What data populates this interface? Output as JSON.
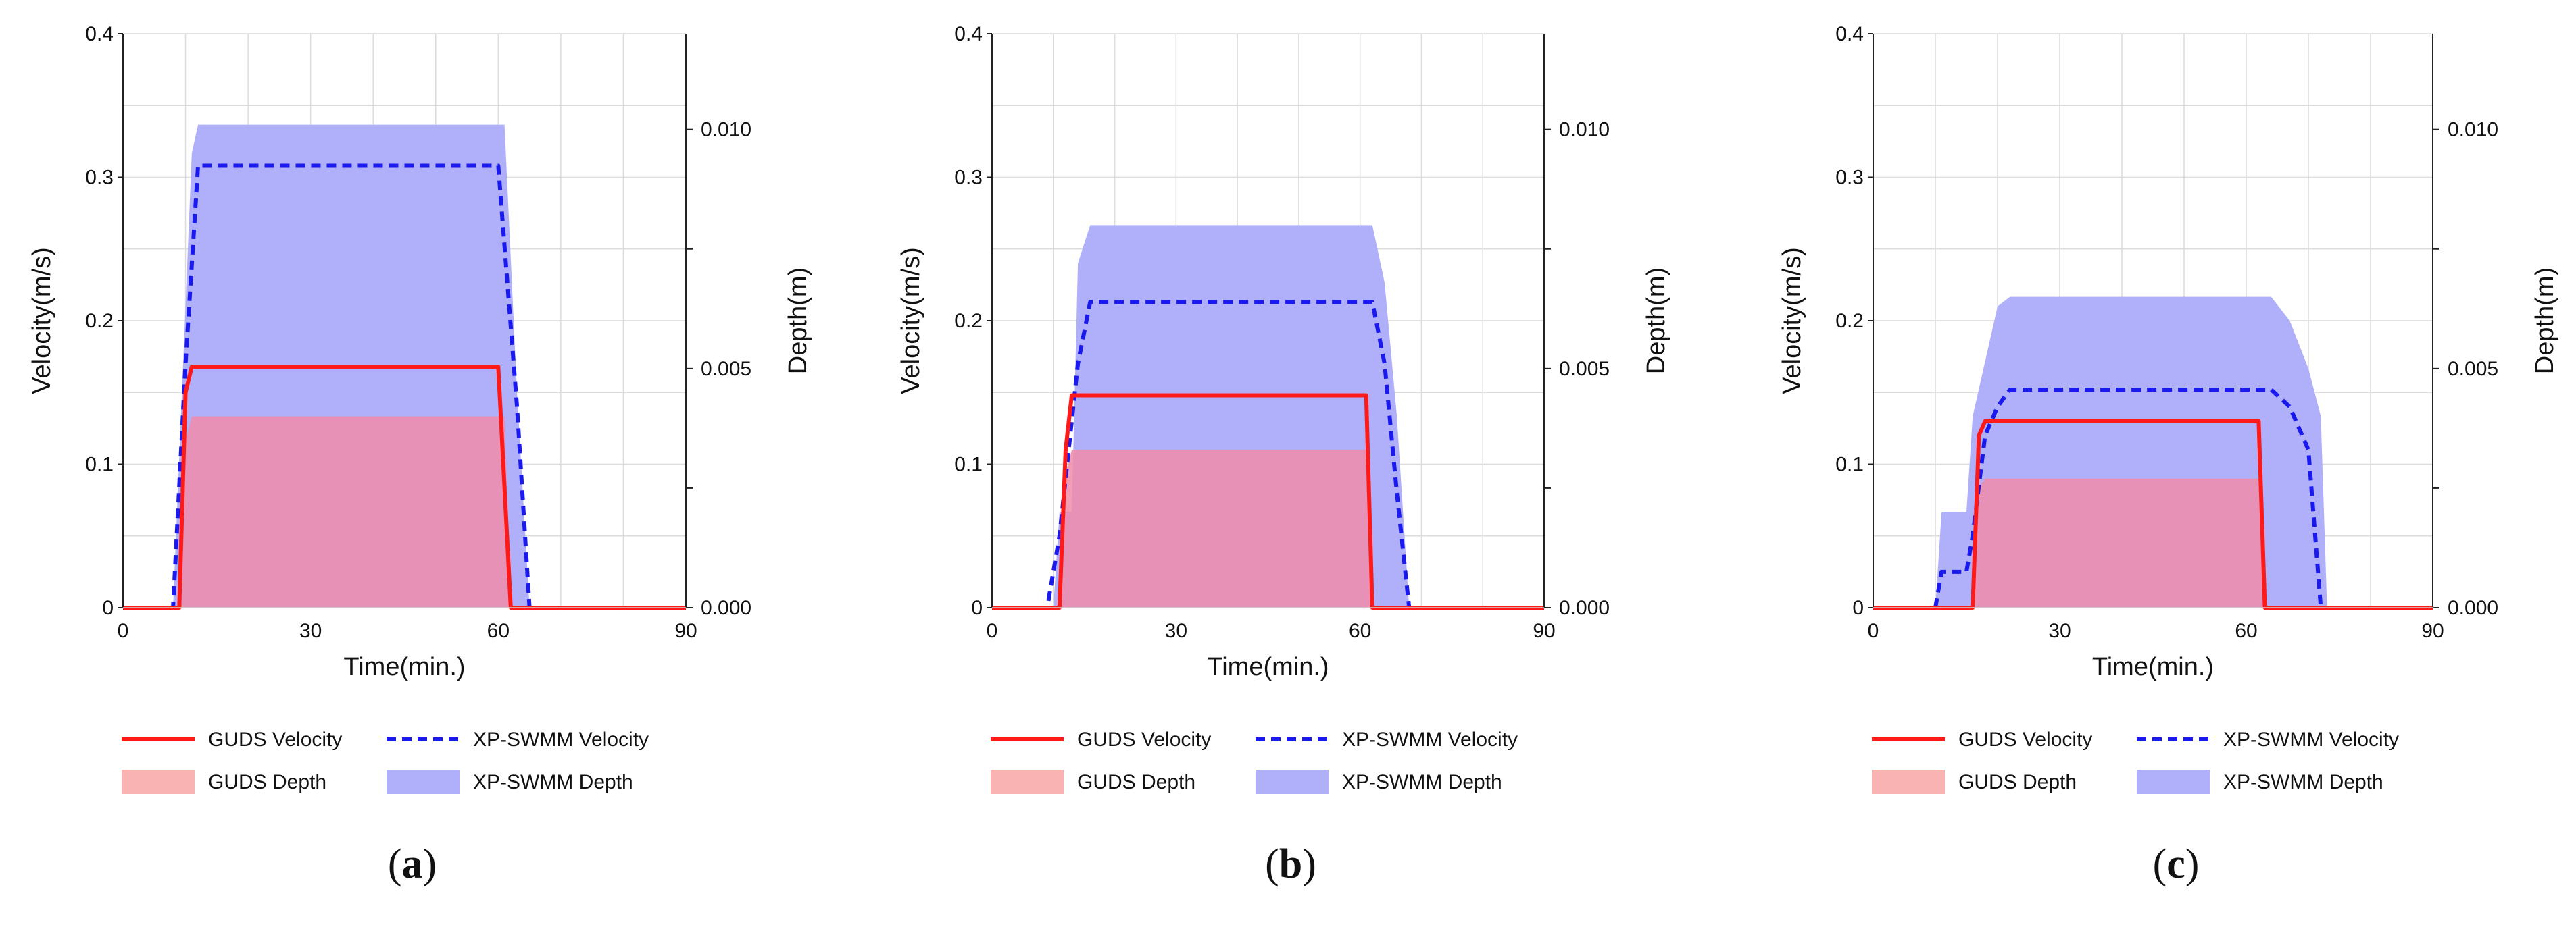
{
  "legend": {
    "guds_velocity": "GUDS Velocity",
    "xp_velocity": "XP-SWMM Velocity",
    "guds_depth": "GUDS Depth",
    "xp_depth": "XP-SWMM Depth"
  },
  "colors": {
    "guds_velocity": "#ff1a1a",
    "xp_velocity": "#1a1aee",
    "guds_depth": "#f08ca8",
    "xp_depth": "#b0b0fa"
  },
  "chart_data": [
    {
      "type": "line",
      "panel": "a",
      "xlabel": "Time(min.)",
      "ylabel": "Velocity(m/s)",
      "y2label": "Depth(m)",
      "xlim": [
        0,
        90
      ],
      "ylim": [
        0,
        0.4
      ],
      "y2lim": [
        0,
        0.012
      ],
      "xticks": [
        "0",
        "30",
        "60",
        "90"
      ],
      "yticks": [
        "0",
        "0.1",
        "0.2",
        "0.3",
        "0.4"
      ],
      "y2ticks": [
        "0.000",
        "0.005",
        "0.010"
      ],
      "grid": true,
      "legend_position": "bottom",
      "series": [
        {
          "name": "GUDS Velocity",
          "axis": "left",
          "style": "solid-line",
          "x": [
            0,
            9,
            10,
            11,
            60,
            62,
            90
          ],
          "y": [
            0,
            0,
            0.15,
            0.168,
            0.168,
            0,
            0
          ]
        },
        {
          "name": "XP-SWMM Velocity",
          "axis": "left",
          "style": "dashed-line",
          "x": [
            0,
            8,
            10,
            12,
            60,
            63,
            65,
            90
          ],
          "y": [
            0,
            0,
            0.17,
            0.308,
            0.308,
            0.14,
            0,
            0
          ]
        },
        {
          "name": "GUDS Depth",
          "axis": "right",
          "style": "area",
          "x": [
            0,
            9,
            10,
            11,
            61,
            62,
            90
          ],
          "y": [
            0,
            0,
            0.0035,
            0.004,
            0.004,
            0,
            0
          ]
        },
        {
          "name": "XP-SWMM Depth",
          "axis": "right",
          "style": "area",
          "x": [
            0,
            8,
            11,
            12,
            61,
            63,
            65,
            90
          ],
          "y": [
            0,
            0,
            0.0095,
            0.0101,
            0.0101,
            0.0045,
            0,
            0
          ]
        }
      ]
    },
    {
      "type": "line",
      "panel": "b",
      "xlabel": "Time(min.)",
      "ylabel": "Velocity(m/s)",
      "y2label": "Depth(m)",
      "xlim": [
        0,
        90
      ],
      "ylim": [
        0,
        0.4
      ],
      "y2lim": [
        0,
        0.012
      ],
      "xticks": [
        "0",
        "30",
        "60",
        "90"
      ],
      "yticks": [
        "0",
        "0.1",
        "0.2",
        "0.3",
        "0.4"
      ],
      "y2ticks": [
        "0.000",
        "0.005",
        "0.010"
      ],
      "grid": true,
      "legend_position": "bottom",
      "series": [
        {
          "name": "GUDS Velocity",
          "axis": "left",
          "style": "solid-line",
          "x": [
            0,
            11,
            12,
            13,
            61,
            62,
            90
          ],
          "y": [
            0,
            0,
            0.11,
            0.148,
            0.148,
            0,
            0
          ]
        },
        {
          "name": "XP-SWMM Velocity",
          "axis": "left",
          "style": "dashed-line",
          "x": [
            0,
            9,
            11,
            14,
            16,
            62,
            64,
            66,
            68,
            90
          ],
          "y": [
            0,
            0,
            0.05,
            0.17,
            0.213,
            0.213,
            0.17,
            0.08,
            0,
            0
          ]
        },
        {
          "name": "GUDS Depth",
          "axis": "right",
          "style": "area",
          "x": [
            0,
            11,
            12,
            13,
            61,
            62,
            90
          ],
          "y": [
            0,
            0,
            0.0028,
            0.0033,
            0.0033,
            0,
            0
          ]
        },
        {
          "name": "XP-SWMM Depth",
          "axis": "right",
          "style": "area",
          "x": [
            0,
            10,
            11,
            13,
            14,
            16,
            62,
            64,
            66,
            68,
            90
          ],
          "y": [
            0,
            0,
            0.002,
            0.002,
            0.0072,
            0.008,
            0.008,
            0.0068,
            0.004,
            0,
            0
          ]
        }
      ]
    },
    {
      "type": "line",
      "panel": "c",
      "xlabel": "Time(min.)",
      "ylabel": "Velocity(m/s)",
      "y2label": "Depth(m)",
      "xlim": [
        0,
        90
      ],
      "ylim": [
        0,
        0.4
      ],
      "y2lim": [
        0,
        0.012
      ],
      "xticks": [
        "0",
        "30",
        "60",
        "90"
      ],
      "yticks": [
        "0",
        "0.1",
        "0.2",
        "0.3",
        "0.4"
      ],
      "y2ticks": [
        "0.000",
        "0.005",
        "0.010"
      ],
      "grid": true,
      "legend_position": "bottom",
      "series": [
        {
          "name": "GUDS Velocity",
          "axis": "left",
          "style": "solid-line",
          "x": [
            0,
            16,
            17,
            18,
            62,
            63,
            90
          ],
          "y": [
            0,
            0,
            0.12,
            0.13,
            0.13,
            0,
            0
          ]
        },
        {
          "name": "XP-SWMM Velocity",
          "axis": "left",
          "style": "dashed-line",
          "x": [
            0,
            10,
            11,
            15,
            16,
            18,
            20,
            22,
            64,
            67,
            70,
            72,
            90
          ],
          "y": [
            0,
            0,
            0.025,
            0.025,
            0.05,
            0.12,
            0.14,
            0.152,
            0.152,
            0.14,
            0.11,
            0,
            0
          ]
        },
        {
          "name": "GUDS Depth",
          "axis": "right",
          "style": "area",
          "x": [
            0,
            16,
            17,
            18,
            62,
            63,
            90
          ],
          "y": [
            0,
            0,
            0.0025,
            0.0027,
            0.0027,
            0,
            0
          ]
        },
        {
          "name": "XP-SWMM Depth",
          "axis": "right",
          "style": "area",
          "x": [
            0,
            10,
            11,
            15,
            16,
            20,
            22,
            64,
            67,
            70,
            72,
            73,
            90
          ],
          "y": [
            0,
            0,
            0.002,
            0.002,
            0.004,
            0.0063,
            0.0065,
            0.0065,
            0.006,
            0.005,
            0.004,
            0,
            0
          ]
        }
      ]
    }
  ],
  "panel_labels": [
    {
      "open": "(",
      "letter": "a",
      "close": ")"
    },
    {
      "open": "(",
      "letter": "b",
      "close": ")"
    },
    {
      "open": "(",
      "letter": "c",
      "close": ")"
    }
  ]
}
